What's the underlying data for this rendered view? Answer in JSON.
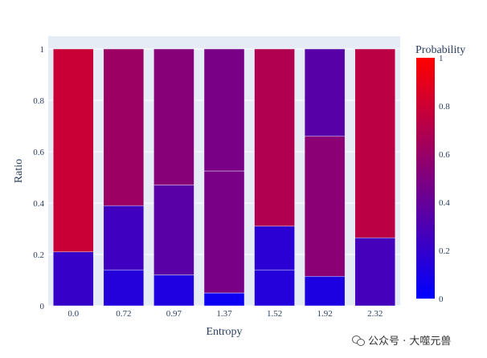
{
  "chart_data": {
    "type": "bar",
    "stacked": true,
    "categories": [
      "0.0",
      "0.72",
      "0.97",
      "1.37",
      "1.52",
      "1.92",
      "2.32"
    ],
    "segments": [
      [
        0.21,
        0.79
      ],
      [
        0.14,
        0.25,
        0.61
      ],
      [
        0.12,
        0.35,
        0.53
      ],
      [
        0.05,
        0.475,
        0.475
      ],
      [
        0.14,
        0.17,
        0.69
      ],
      [
        0.115,
        0.545,
        0.34
      ],
      [
        0.265,
        0.735
      ]
    ],
    "xlabel": "Entropy",
    "ylabel": "Ratio",
    "ylim": [
      0,
      1
    ],
    "yticks": [
      "0",
      "0.2",
      "0.4",
      "0.6",
      "0.8",
      "1"
    ],
    "grid": true,
    "colorbar": {
      "title": "Probability",
      "range": [
        0,
        1
      ],
      "ticks": [
        "0",
        "0.2",
        "0.4",
        "0.6",
        "0.8",
        "1"
      ],
      "low_color": "#0000ff",
      "high_color": "#ff0000"
    },
    "plot_background": "#e5ecf6"
  },
  "watermark": {
    "icon": "wechat-icon",
    "text": "公众号 · 大噬元兽"
  }
}
